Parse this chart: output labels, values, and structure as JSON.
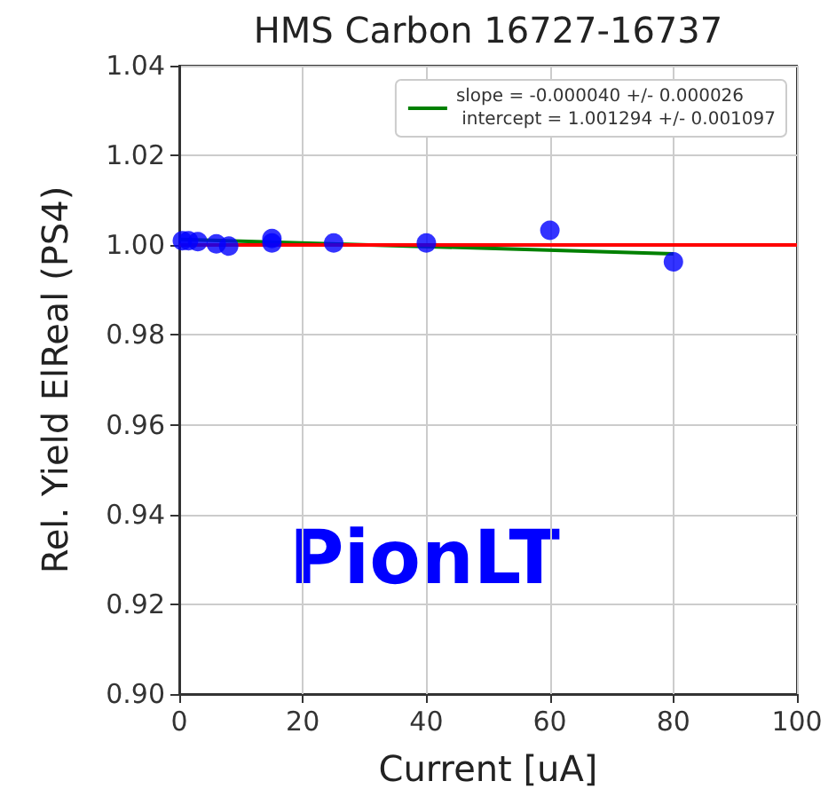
{
  "chart_data": {
    "type": "scatter",
    "title": "HMS Carbon 16727-16737",
    "xlabel": "Current [uA]",
    "ylabel": "Rel. Yield ElReal (PS4)",
    "annotations": [
      "PionLT"
    ],
    "xlim": [
      0,
      100
    ],
    "xticks": [
      0,
      20,
      40,
      60,
      80,
      100
    ],
    "ylim": [
      0.9,
      1.04
    ],
    "yticks": [
      {
        "value": 0.9,
        "label": "0.90"
      },
      {
        "value": 0.92,
        "label": "0.92"
      },
      {
        "value": 0.94,
        "label": "0.94"
      },
      {
        "value": 0.96,
        "label": "0.96"
      },
      {
        "value": 0.98,
        "label": "0.98"
      },
      {
        "value": 1.0,
        "label": "1.00"
      },
      {
        "value": 1.02,
        "label": "1.02"
      },
      {
        "value": 1.04,
        "label": "1.04"
      }
    ],
    "grid": true,
    "legend": "top right",
    "marker": "circle",
    "series": [
      {
        "color": "#0000ff",
        "x": [
          0.5,
          1.5,
          3,
          6,
          8,
          15,
          15,
          25,
          40,
          60,
          80
        ],
        "values": [
          1.001,
          1.001,
          1.0008,
          1.0003,
          0.9998,
          1.0015,
          1.0005,
          1.0005,
          1.0005,
          1.0033,
          0.9963
        ]
      },
      {
        "type": "line",
        "name": "slope = -0.000040 +/- 0.000026\n intercept = 1.001294 +/- 0.001097",
        "color": "#008000",
        "x": [
          0,
          80
        ],
        "values": [
          1.0013,
          0.9981
        ],
        "marker": "none"
      }
    ],
    "ref_lines": [
      {
        "axis": "y",
        "value": 1.0,
        "color": "#ff0000"
      }
    ]
  }
}
